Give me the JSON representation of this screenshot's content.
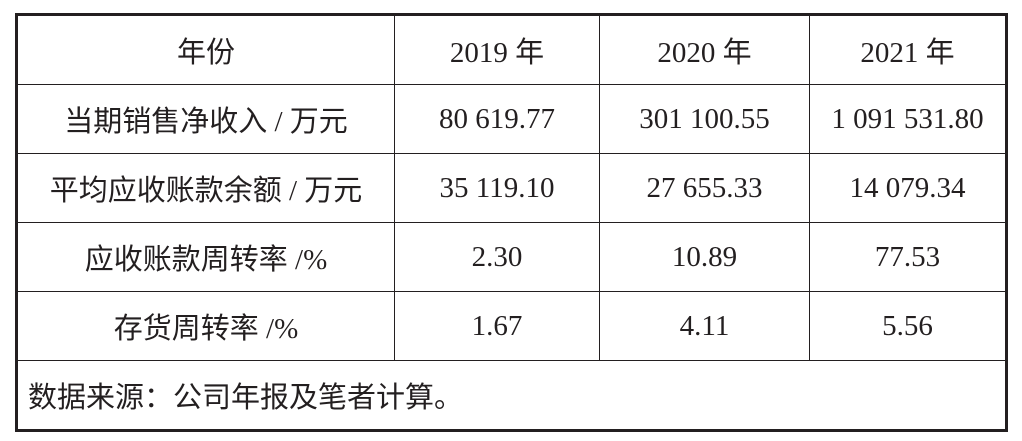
{
  "table": {
    "header": [
      "年份",
      "2019 年",
      "2020 年",
      "2021 年"
    ],
    "rows": [
      [
        "当期销售净收入 / 万元",
        "80 619.77",
        "301 100.55",
        "1 091 531.80"
      ],
      [
        "平均应收账款余额 / 万元",
        "35 119.10",
        "27 655.33",
        "14 079.34"
      ],
      [
        "应收账款周转率 /%",
        "2.30",
        "10.89",
        "77.53"
      ],
      [
        "存货周转率 /%",
        "1.67",
        "4.11",
        "5.56"
      ]
    ],
    "note": "数据来源：公司年报及笔者计算。"
  }
}
